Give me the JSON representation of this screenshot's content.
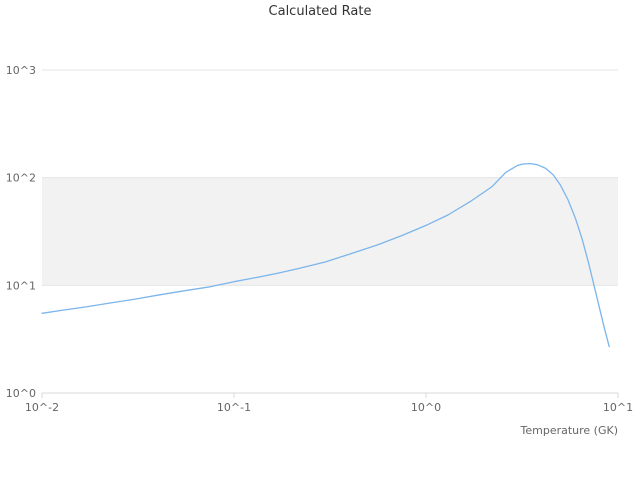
{
  "header": {
    "title": "Calculated Rate"
  },
  "axes": {
    "x_title": "Temperature (GK)"
  },
  "chart_data": {
    "type": "line",
    "title": "Calculated Rate",
    "xlabel": "Temperature (GK)",
    "ylabel": "",
    "x_scale": "log",
    "y_scale": "log",
    "xlim": [
      0.01,
      10
    ],
    "ylim": [
      1,
      1000
    ],
    "x_tick_values": [
      0.01,
      0.1,
      1,
      10
    ],
    "x_tick_labels": [
      "10^-2",
      "10^-1",
      "10^0",
      "10^1"
    ],
    "y_tick_values": [
      1,
      10,
      100,
      1000
    ],
    "y_tick_labels": [
      "10^0",
      "10^1",
      "10^2",
      "10^3"
    ],
    "grid": true,
    "legend": "none",
    "band": {
      "from": 10,
      "to": 100,
      "color": "#f2f2f2"
    },
    "colors": {
      "line": "#7cb5ec",
      "grid": "#e6e6e6",
      "axis": "#d8d8d8",
      "tick_text": "#666666",
      "title_text": "#333333"
    },
    "series": [
      {
        "name": "Calculated Rate",
        "x": [
          0.01,
          0.013,
          0.017,
          0.022,
          0.03,
          0.04,
          0.055,
          0.075,
          0.1,
          0.13,
          0.17,
          0.22,
          0.3,
          0.4,
          0.55,
          0.75,
          1.0,
          1.3,
          1.7,
          2.2,
          2.6,
          3.0,
          3.2,
          3.5,
          3.8,
          4.2,
          4.6,
          5.0,
          5.5,
          6.0,
          6.5,
          7.0,
          7.5,
          8.0,
          8.5,
          9.0
        ],
        "y": [
          5.5,
          5.9,
          6.3,
          6.8,
          7.4,
          8.1,
          8.9,
          9.7,
          10.8,
          11.8,
          13.0,
          14.4,
          16.5,
          19.5,
          23.5,
          29,
          36,
          45,
          60,
          82,
          112,
          130,
          134,
          135,
          132,
          122,
          106,
          86,
          62,
          42,
          27,
          16.5,
          10,
          6.2,
          4.0,
          2.7
        ]
      }
    ]
  }
}
